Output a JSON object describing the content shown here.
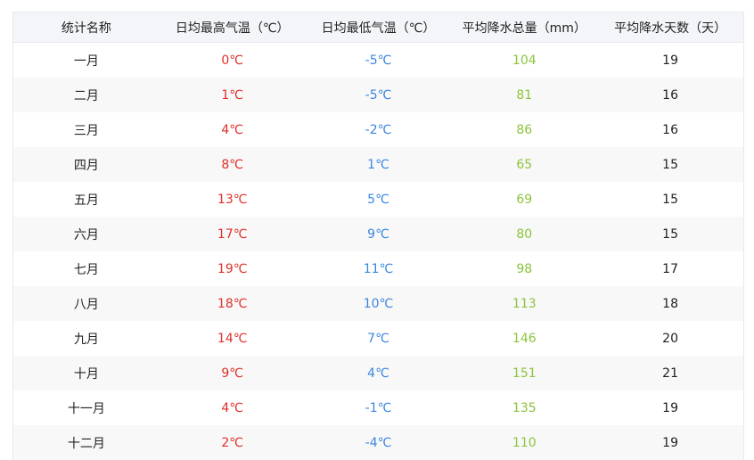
{
  "headers": [
    "统计名称",
    "日均最高气温（℃）",
    "日均最低气温（℃）",
    "平均降水总量（mm）",
    "平均降水天数（天）"
  ],
  "rows": [
    [
      "一月",
      "0℃",
      "-5℃",
      "104",
      "19"
    ],
    [
      "二月",
      "1℃",
      "-5℃",
      "81",
      "16"
    ],
    [
      "三月",
      "4℃",
      "-2℃",
      "86",
      "16"
    ],
    [
      "四月",
      "8℃",
      "1℃",
      "65",
      "15"
    ],
    [
      "五月",
      "13℃",
      "5℃",
      "69",
      "15"
    ],
    [
      "六月",
      "17℃",
      "9℃",
      "80",
      "15"
    ],
    [
      "七月",
      "19℃",
      "11℃",
      "98",
      "17"
    ],
    [
      "八月",
      "18℃",
      "10℃",
      "113",
      "18"
    ],
    [
      "九月",
      "14℃",
      "7℃",
      "146",
      "20"
    ],
    [
      "十月",
      "9℃",
      "4℃",
      "151",
      "21"
    ],
    [
      "十一月",
      "4℃",
      "-1℃",
      "135",
      "19"
    ],
    [
      "十二月",
      "2℃",
      "-4℃",
      "110",
      "19"
    ]
  ],
  "colors": {
    "high": "#e0302a",
    "low": "#3b86e0",
    "rain": "#8cc43c"
  }
}
